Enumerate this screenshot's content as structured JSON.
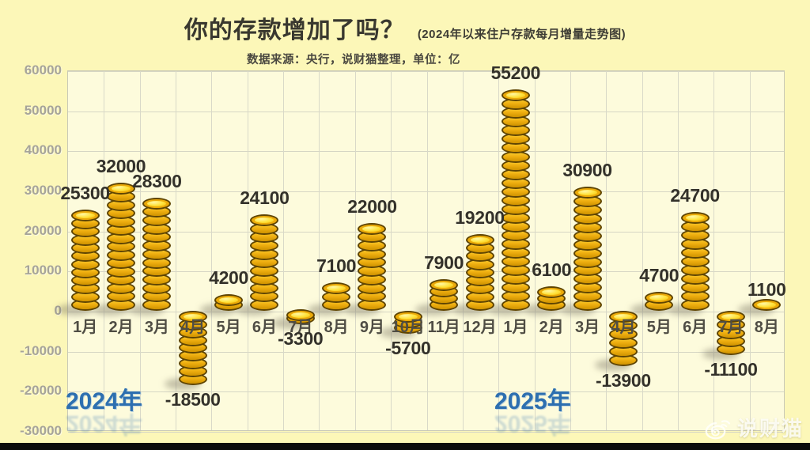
{
  "header": {
    "title": "你的存款增加了吗？",
    "suffix": "(2024年以来住户存款每月增量走势图)",
    "source_line": "数据来源：央行，说财猫整理，单位：亿"
  },
  "watermark": {
    "text": "说财猫",
    "icon": "weibo-icon"
  },
  "colors": {
    "background": "#FCF7B8",
    "plot_background": "#FDFBDC",
    "gridline": "#D6D6C4",
    "coin_gold": "#EFAF10",
    "coin_edge": "#5F4503",
    "coin_face": "#FFE23A",
    "value_label": "#33312A",
    "month_label": "#4F4D44",
    "ytick_label": "#A6A499",
    "year_label_blue": "#2D6FB0",
    "watermark_white": "#FFFFFC",
    "bottom_bar_black": "#0B0B0B"
  },
  "chart_data": {
    "type": "bar",
    "title": "你的存款增加了吗？",
    "subtitle": "(2024年以来住户存款每月增量走势图)",
    "source": "数据来源：央行，说财猫整理，单位：亿",
    "unit": "亿",
    "categories": [
      "1月",
      "2月",
      "3月",
      "4月",
      "5月",
      "6月",
      "7月",
      "8月",
      "9月",
      "10月",
      "11月",
      "12月",
      "1月",
      "2月",
      "3月",
      "4月",
      "5月",
      "6月",
      "7月",
      "8月"
    ],
    "values": [
      25300,
      32000,
      28300,
      -18500,
      4200,
      24100,
      -3300,
      7100,
      22000,
      -5700,
      7900,
      19200,
      55200,
      6100,
      30900,
      -13900,
      4700,
      24700,
      -11100,
      1100
    ],
    "year_groups": [
      {
        "label": "2024年",
        "months": 12
      },
      {
        "label": "2025年",
        "months": 8
      }
    ],
    "ylim": [
      -30000,
      60000
    ],
    "yticks": [
      60000,
      50000,
      40000,
      30000,
      20000,
      10000,
      0,
      -10000,
      -20000,
      -30000
    ],
    "grid": true,
    "legend": null,
    "bar_style": "stacked-gold-coins"
  }
}
